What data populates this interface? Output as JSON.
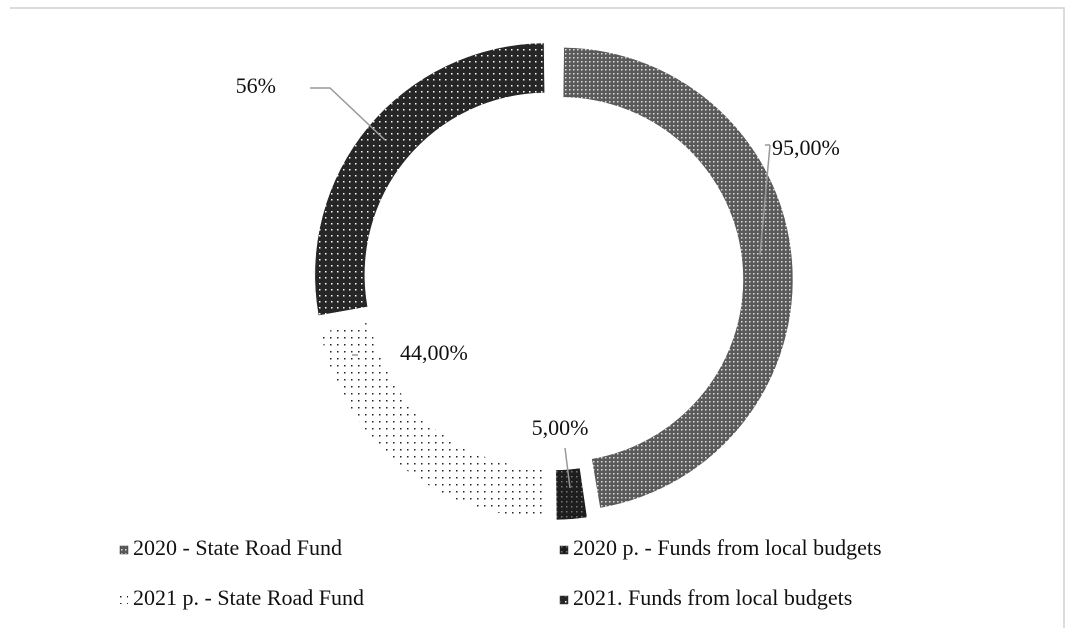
{
  "chart_data": {
    "type": "pie",
    "donut": true,
    "categories": [
      "2020 - State Road Fund",
      "2020 p. - Funds from local budgets",
      "2021 p. - State Road Fund",
      "2021. Funds from local budgets"
    ],
    "values": [
      95,
      5,
      44,
      56
    ],
    "value_labels": [
      "95,00%",
      "5,00%",
      "44,00%",
      "56%"
    ],
    "colors": [
      "#5a5a5a",
      "#1e1e1e",
      "#ffffff",
      "#262626"
    ],
    "legend": "bottom"
  }
}
